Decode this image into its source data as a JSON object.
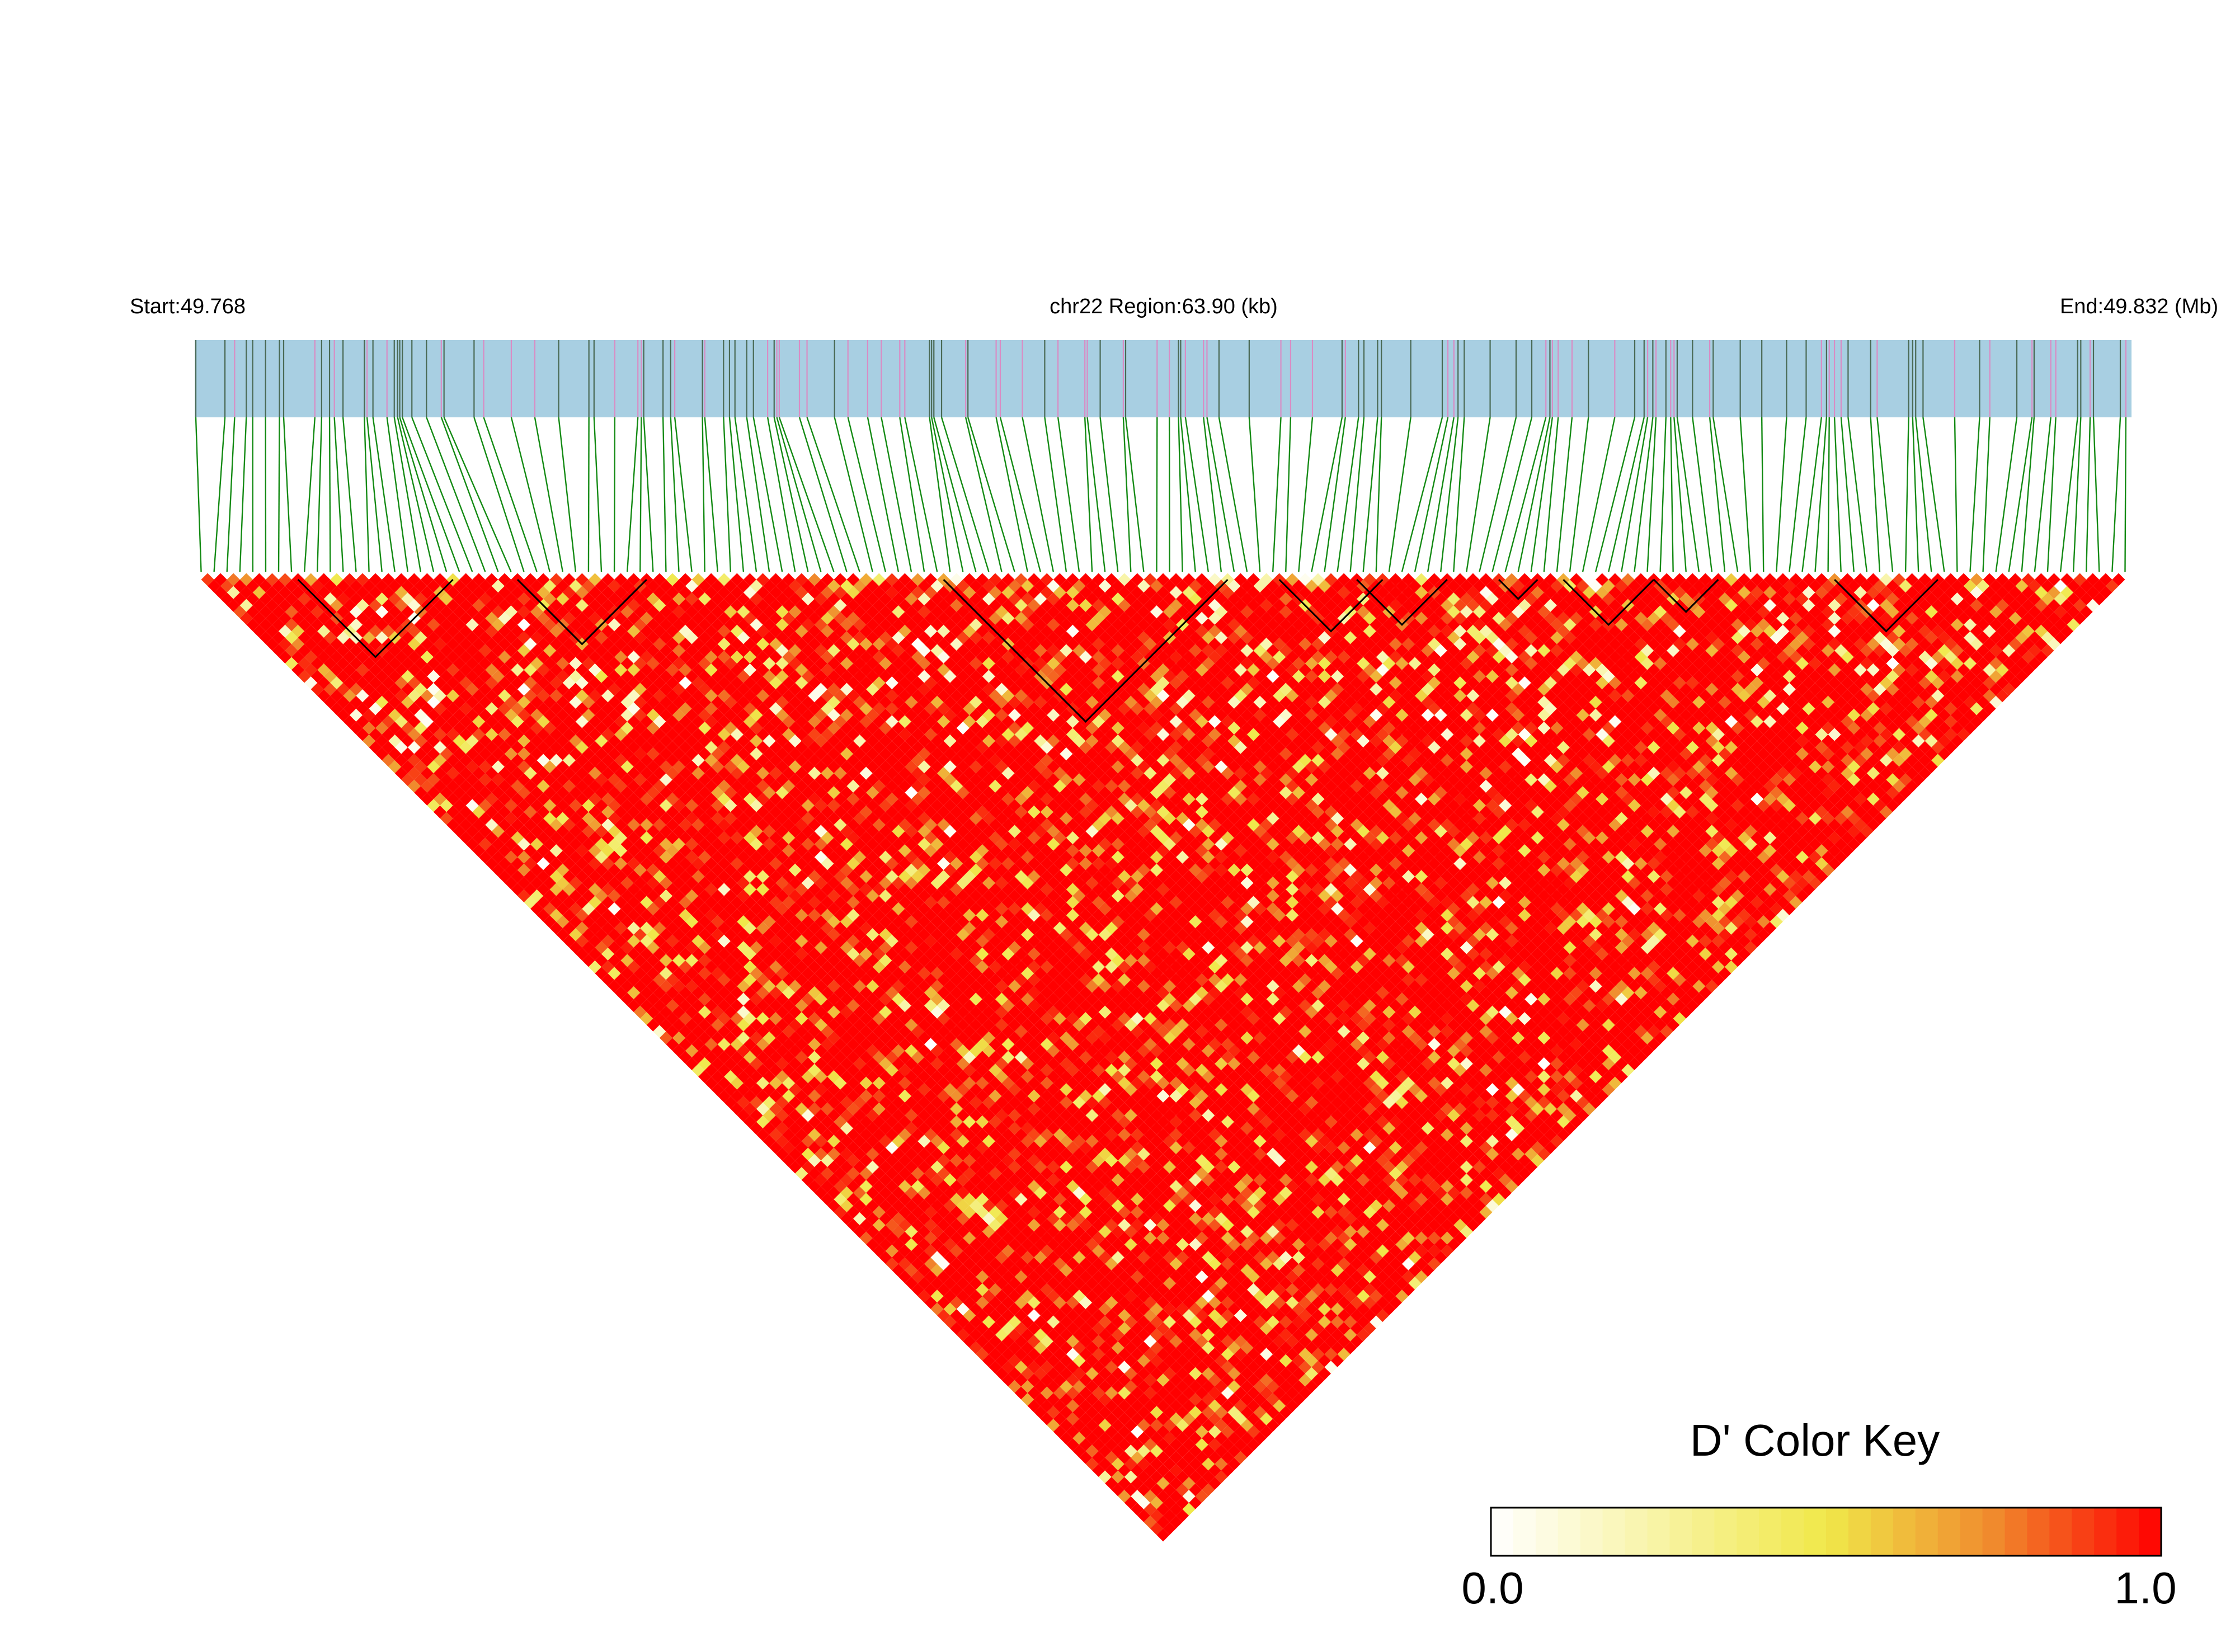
{
  "chart_data": {
    "type": "heatmap",
    "subtype": "LD triangle heatmap",
    "chromosome": "chr22",
    "header": {
      "start_label": "Start:49.768",
      "region_label": "chr22 Region:63.90 (kb)",
      "end_label": "End:49.832 (Mb)"
    },
    "start_mb": 49.768,
    "end_mb": 49.832,
    "region_kb": 63.9,
    "snp_count": 150,
    "measure": "D'",
    "color_key": {
      "title": "D' Color Key",
      "min_label": "0.0",
      "max_label": "1.0",
      "min": 0.0,
      "max": 1.0,
      "colors": [
        "#ffffff",
        "#f3ea4c",
        "#f08a2d",
        "#ff0000"
      ]
    },
    "ld_blocks_snp_index_ranges": [
      [
        8,
        19
      ],
      [
        25,
        34
      ],
      [
        58,
        79
      ],
      [
        84,
        91
      ],
      [
        90,
        96
      ],
      [
        101,
        103
      ],
      [
        106,
        112
      ],
      [
        113,
        117
      ],
      [
        127,
        134
      ]
    ],
    "colors": {
      "track_fill": "#a8cfe2",
      "snp_tick_dark": "#4a6a55",
      "snp_tick_pink": "#d98cc4",
      "connector": "#138a13",
      "block_outline": "#000000"
    }
  }
}
